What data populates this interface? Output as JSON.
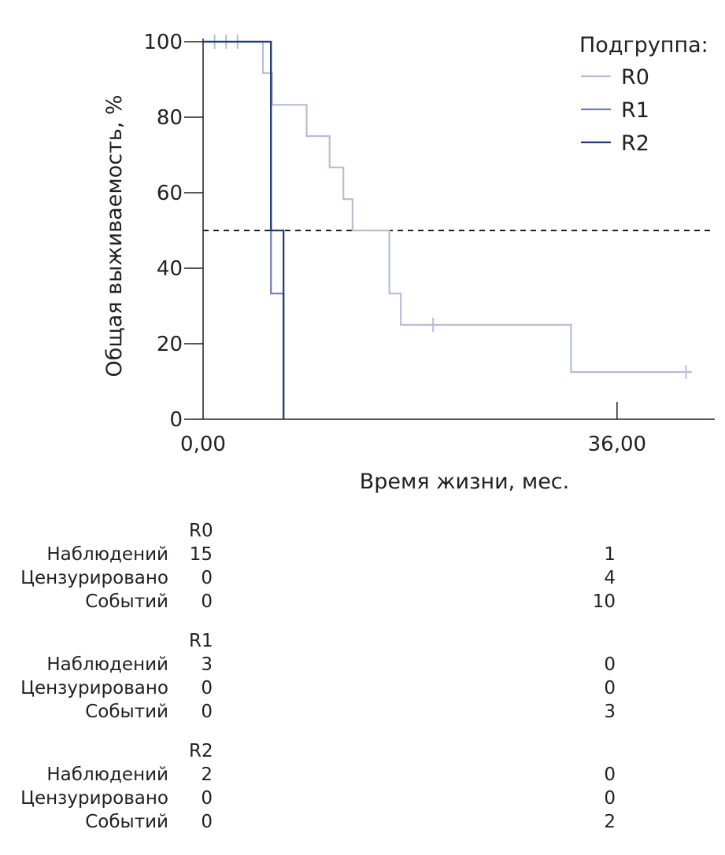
{
  "chart_data": {
    "type": "line",
    "subtype": "kaplan-meier-step",
    "xlabel": "Время жизни, мес.",
    "ylabel": "Общая выживаемость, %",
    "x_ticks": [
      {
        "value": 0,
        "label": "0,00"
      },
      {
        "value": 36,
        "label": "36,00"
      }
    ],
    "y_ticks": [
      0,
      20,
      40,
      60,
      80,
      100
    ],
    "xlim": [
      0,
      44.5
    ],
    "ylim": [
      0,
      100
    ],
    "reference_line": {
      "y": 50,
      "style": "dashed"
    },
    "legend": {
      "title": "Подгруппа:",
      "position": "top-right"
    },
    "series": [
      {
        "name": "R0",
        "color": "#b7bdd5",
        "points": [
          [
            0,
            100
          ],
          [
            5.2,
            100
          ],
          [
            5.2,
            91.7
          ],
          [
            6.0,
            91.7
          ],
          [
            6.0,
            83.3
          ],
          [
            9,
            83.3
          ],
          [
            9,
            75
          ],
          [
            11,
            75
          ],
          [
            11,
            66.7
          ],
          [
            12.2,
            66.7
          ],
          [
            12.2,
            58.3
          ],
          [
            13,
            58.3
          ],
          [
            13,
            50
          ],
          [
            16.2,
            50
          ],
          [
            16.2,
            33.3
          ],
          [
            17.2,
            33.3
          ],
          [
            17.2,
            25
          ],
          [
            32,
            25
          ],
          [
            32,
            12.5
          ],
          [
            42.5,
            12.5
          ]
        ],
        "censored": [
          [
            1.0,
            100
          ],
          [
            2.0,
            100
          ],
          [
            3.0,
            100
          ],
          [
            20,
            25
          ],
          [
            42,
            12.5
          ]
        ]
      },
      {
        "name": "R1",
        "color": "#6f7fad",
        "points": [
          [
            0,
            100
          ],
          [
            5.9,
            100
          ],
          [
            5.9,
            33.3
          ],
          [
            7.0,
            33.3
          ],
          [
            7.0,
            0
          ]
        ],
        "censored": []
      },
      {
        "name": "R2",
        "color": "#1f3b73",
        "points": [
          [
            0,
            100
          ],
          [
            5.9,
            100
          ],
          [
            5.9,
            50
          ],
          [
            7.0,
            50
          ],
          [
            7.0,
            0
          ]
        ],
        "censored": []
      }
    ]
  },
  "risk_table": [
    {
      "group": "R0",
      "rows": [
        {
          "label": "Наблюдений",
          "values": [
            "15",
            "1"
          ]
        },
        {
          "label": "Цензурировано",
          "values": [
            "0",
            "4"
          ]
        },
        {
          "label": "Событий",
          "values": [
            "0",
            "10"
          ]
        }
      ]
    },
    {
      "group": "R1",
      "rows": [
        {
          "label": "Наблюдений",
          "values": [
            "3",
            "0"
          ]
        },
        {
          "label": "Цензурировано",
          "values": [
            "0",
            "0"
          ]
        },
        {
          "label": "Событий",
          "values": [
            "0",
            "3"
          ]
        }
      ]
    },
    {
      "group": "R2",
      "rows": [
        {
          "label": "Наблюдений",
          "values": [
            "2",
            "0"
          ]
        },
        {
          "label": "Цензурировано",
          "values": [
            "0",
            "0"
          ]
        },
        {
          "label": "Событий",
          "values": [
            "0",
            "2"
          ]
        }
      ]
    }
  ]
}
